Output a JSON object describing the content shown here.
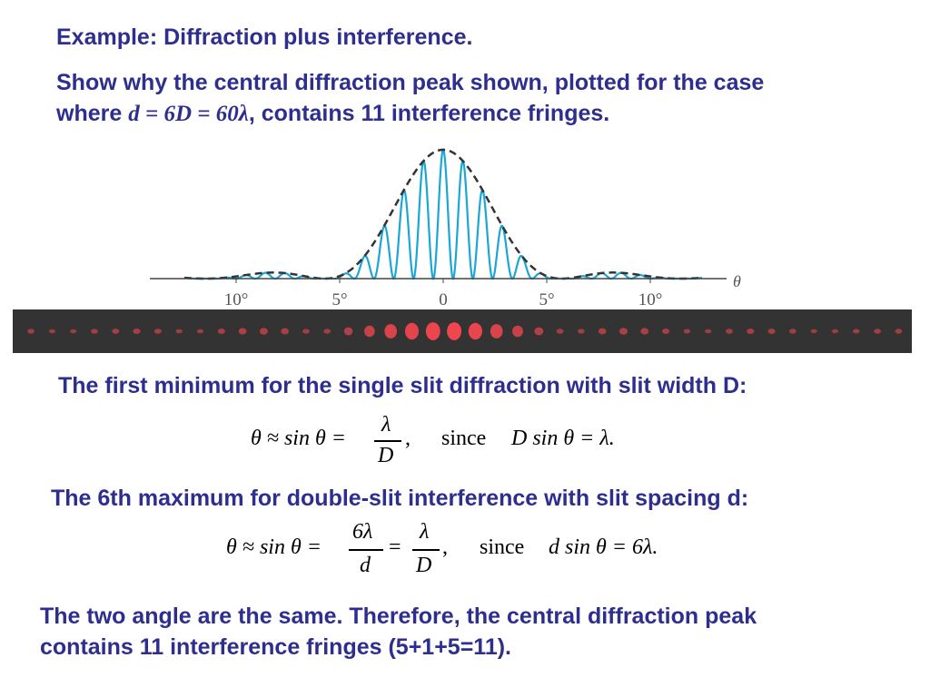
{
  "title": "Example: Diffraction plus interference.",
  "problem": {
    "line1": "Show why the central diffraction peak shown, plotted for the case",
    "line2_prefix": "where ",
    "line2_math": "d = 6D = 60λ",
    "line2_suffix": ", contains 11 interference fringes."
  },
  "figure": {
    "axis_symbol": "θ",
    "tick_labels": [
      "10°",
      "5°",
      "0",
      "5°",
      "10°"
    ],
    "envelope_color": "#333333",
    "fringe_color": "#1aa6d6",
    "band_color": "#f0464f"
  },
  "single_slit": {
    "heading": "The first minimum for the single slit diffraction with slit width D:",
    "eq": {
      "lhs": "θ ≈ sin θ =",
      "num": "λ",
      "den": "D",
      "comma": ",",
      "since": "since",
      "rhs": "D sin θ = λ."
    }
  },
  "double_slit": {
    "heading": "The 6th maximum for double-slit interference with slit spacing d:",
    "eq": {
      "lhs": "θ ≈ sin θ =",
      "num1": "6λ",
      "den1": "d",
      "eq2": "=",
      "num2": "λ",
      "den2": "D",
      "comma": ",",
      "since": "since",
      "rhs": "d sin θ = 6λ."
    }
  },
  "conclusion": {
    "line1": "The two angle are the same. Therefore, the central diffraction peak",
    "line2": "contains 11 interference fringes (5+1+5=11)."
  }
}
